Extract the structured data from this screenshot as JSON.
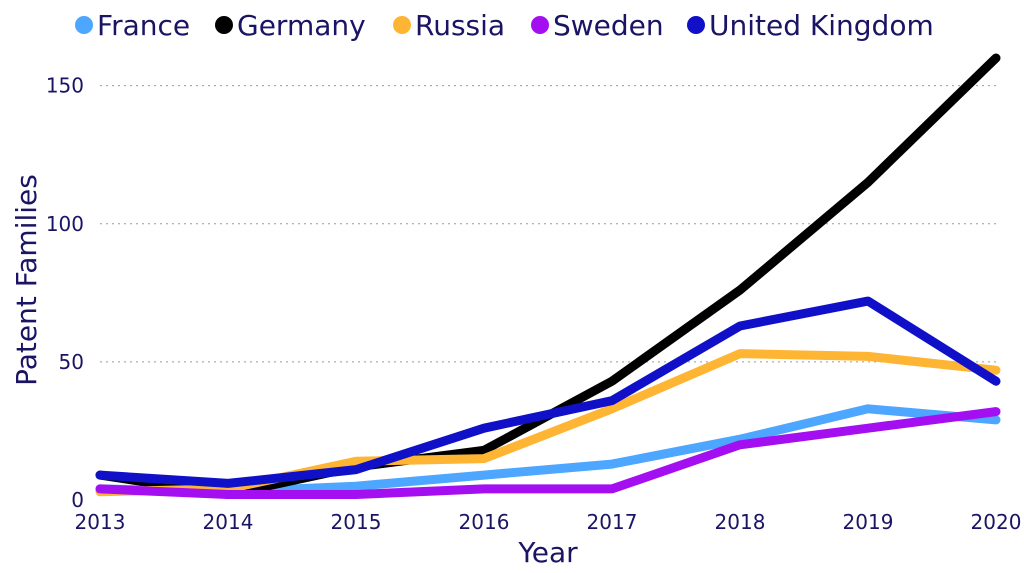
{
  "chart_data": {
    "type": "line",
    "xlabel": "Year",
    "ylabel": "Patent Families",
    "x": [
      "2013",
      "2014",
      "2015",
      "2016",
      "2017",
      "2018",
      "2019",
      "2020"
    ],
    "ylim": [
      0,
      160
    ],
    "yticks": [
      0,
      50,
      100,
      150
    ],
    "grid": "horizontal dotted",
    "legend_position": "top",
    "series": [
      {
        "name": "France",
        "color": "#4da6ff",
        "values": [
          4,
          3,
          5,
          9,
          13,
          22,
          33,
          29
        ]
      },
      {
        "name": "Germany",
        "color": "#000000",
        "values": [
          9,
          2,
          12,
          18,
          43,
          76,
          115,
          160
        ]
      },
      {
        "name": "Russia",
        "color": "#ffb534",
        "values": [
          3,
          4,
          14,
          15,
          33,
          53,
          52,
          47
        ]
      },
      {
        "name": "Sweden",
        "color": "#a40ff2",
        "values": [
          4,
          2,
          2,
          4,
          4,
          20,
          26,
          32
        ]
      },
      {
        "name": "United Kingdom",
        "color": "#1010c8",
        "values": [
          9,
          6,
          11,
          26,
          36,
          63,
          72,
          43
        ]
      }
    ]
  }
}
